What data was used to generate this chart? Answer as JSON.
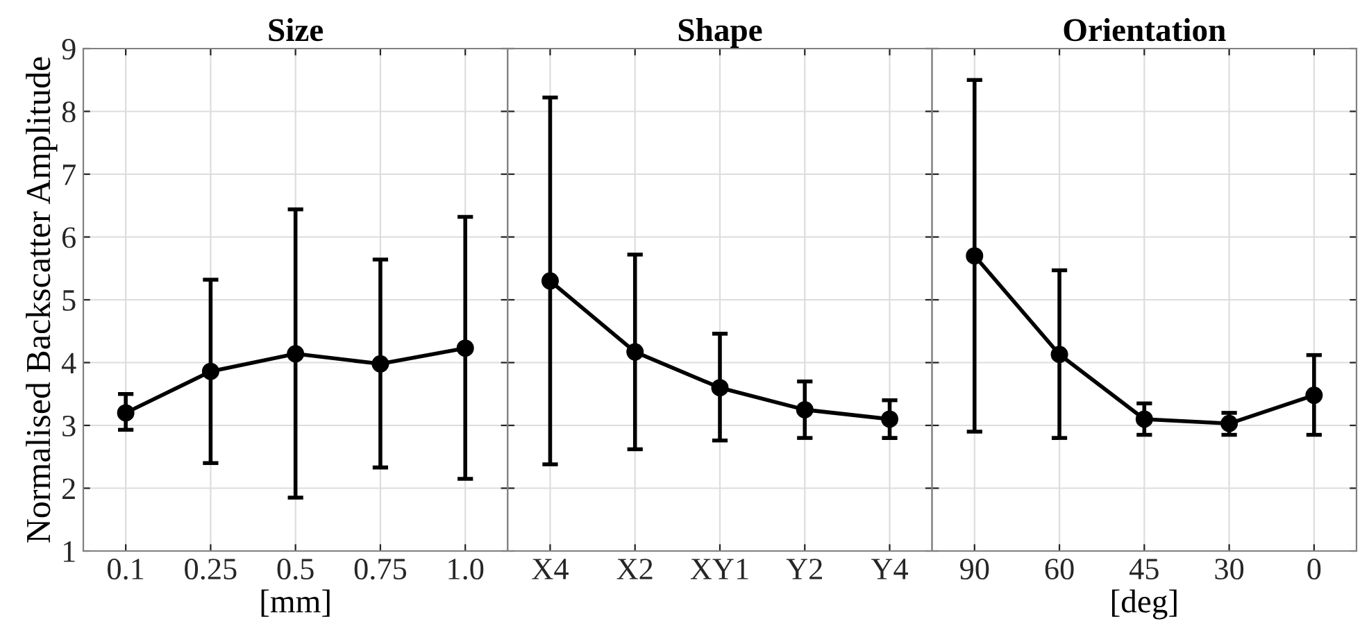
{
  "chart_data": [
    {
      "type": "line",
      "title": "Size",
      "xlabel": "[mm]",
      "ylabel": "Normalised Backscatter Amplitude",
      "categories": [
        "0.1",
        "0.25",
        "0.5",
        "0.75",
        "1.0"
      ],
      "series": [
        {
          "color": "#000000",
          "values": [
            3.2,
            3.86,
            4.14,
            3.98,
            4.23
          ],
          "errors": [
            [
              2.93,
              3.5
            ],
            [
              2.4,
              5.32
            ],
            [
              1.85,
              6.44
            ],
            [
              2.33,
              5.64
            ],
            [
              2.15,
              6.32
            ]
          ]
        }
      ],
      "ylim": [
        1,
        9
      ],
      "yticks": [
        1,
        2,
        3,
        4,
        5,
        6,
        7,
        8,
        9
      ],
      "grid": true,
      "marker": "circle",
      "line_style": "solid"
    },
    {
      "type": "line",
      "title": "Shape",
      "categories": [
        "X4",
        "X2",
        "XY1",
        "Y2",
        "Y4"
      ],
      "series": [
        {
          "color": "#000000",
          "values": [
            5.3,
            4.17,
            3.6,
            3.25,
            3.1
          ],
          "errors": [
            [
              2.38,
              8.22
            ],
            [
              2.62,
              5.72
            ],
            [
              2.76,
              4.46
            ],
            [
              2.8,
              3.7
            ],
            [
              2.8,
              3.4
            ]
          ]
        }
      ],
      "ylim": [
        1,
        9
      ],
      "yticks": [
        1,
        2,
        3,
        4,
        5,
        6,
        7,
        8,
        9
      ],
      "tick_labels": "x",
      "grid": true,
      "marker": "circle",
      "line_style": "solid"
    },
    {
      "type": "line",
      "title": "Orientation",
      "xlabel": "[deg]",
      "categories": [
        "90",
        "60",
        "45",
        "30",
        "0"
      ],
      "series": [
        {
          "color": "#000000",
          "values": [
            5.7,
            4.13,
            3.1,
            3.03,
            3.48
          ],
          "errors": [
            [
              2.9,
              8.5
            ],
            [
              2.8,
              5.47
            ],
            [
              2.85,
              3.35
            ],
            [
              2.85,
              3.2
            ],
            [
              2.85,
              4.12
            ]
          ]
        }
      ],
      "ylim": [
        1,
        9
      ],
      "yticks": [
        1,
        2,
        3,
        4,
        5,
        6,
        7,
        8,
        9
      ],
      "tick_labels": "x",
      "grid": true,
      "marker": "circle",
      "line_style": "solid"
    }
  ]
}
